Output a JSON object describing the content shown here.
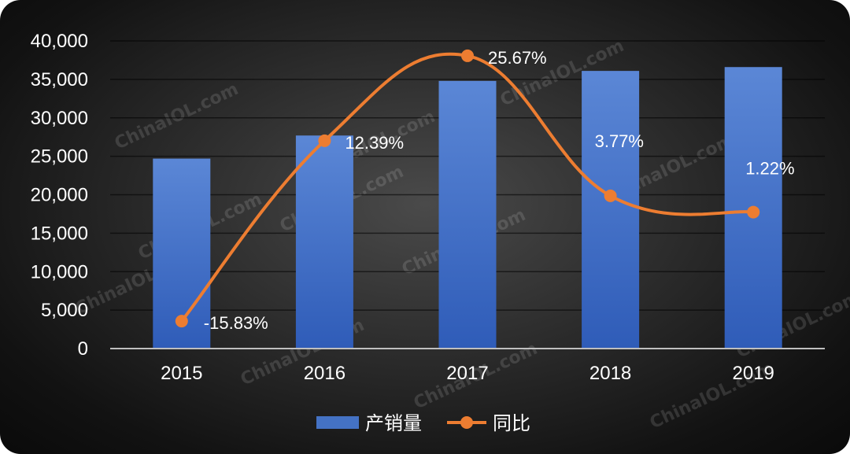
{
  "chart_data": {
    "type": "bar",
    "categories": [
      "2015",
      "2016",
      "2017",
      "2018",
      "2019"
    ],
    "series": [
      {
        "name": "产销量",
        "type": "bar",
        "values": [
          24700,
          27700,
          34800,
          36100,
          36600
        ],
        "color": "#4472c4"
      },
      {
        "name": "同比",
        "type": "line",
        "smooth": true,
        "values": [
          -15.83,
          12.39,
          25.67,
          3.77,
          1.22
        ],
        "labels": [
          "-15.83%",
          "12.39%",
          "25.67%",
          "3.77%",
          "1.22%"
        ],
        "color": "#ed7d31"
      }
    ],
    "y_ticks": [
      "40,000",
      "35,000",
      "30,000",
      "25,000",
      "20,000",
      "15,000",
      "10,000",
      "5,000",
      "0"
    ],
    "ylim": [
      0,
      40000
    ],
    "grid": true,
    "legend_position": "bottom",
    "watermark": "ChinaIOL.com"
  }
}
